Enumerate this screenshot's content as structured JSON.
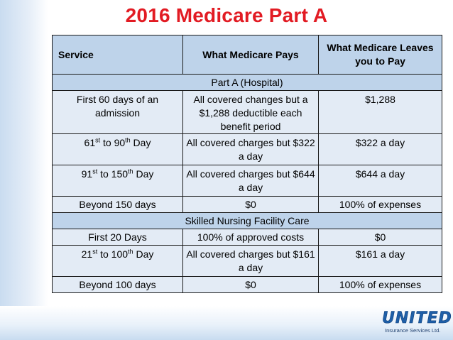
{
  "title": "2016 Medicare Part A",
  "table": {
    "headers": [
      "Service",
      "What Medicare Pays",
      "What Medicare Leaves you to Pay"
    ],
    "sections": [
      {
        "name": "Part A (Hospital)",
        "rows": [
          {
            "service": "First 60 days of an admission",
            "pays": "All covered changes but a $1,288 deductible each benefit period",
            "leaves": "$1,288"
          },
          {
            "service_parts": [
              "61",
              "st",
              " to 90",
              "th",
              " Day"
            ],
            "pays": "All covered charges but $322 a day",
            "leaves": "$322 a day"
          },
          {
            "service_parts": [
              "91",
              "st",
              " to 150",
              "th",
              " Day"
            ],
            "pays": "All covered charges but $644 a day",
            "leaves": "$644 a day"
          },
          {
            "service": "Beyond 150 days",
            "pays": "$0",
            "leaves": "100% of expenses"
          }
        ]
      },
      {
        "name": "Skilled Nursing Facility Care",
        "rows": [
          {
            "service": "First 20 Days",
            "pays": "100% of approved costs",
            "leaves": "$0"
          },
          {
            "service_parts": [
              "21",
              "st",
              " to 100",
              "th",
              " Day"
            ],
            "pays": "All covered charges but $161 a day",
            "leaves": "$161 a day"
          },
          {
            "service": "Beyond 100 days",
            "pays": "$0",
            "leaves": "100% of expenses"
          }
        ]
      }
    ]
  },
  "logo": {
    "word": "UNITED",
    "sub": "Insurance Services Ltd."
  },
  "colors": {
    "title": "#e21b23",
    "header_bg": "#bed3ea",
    "row_bg": "#e3ebf5",
    "logo": "#1f5fa8"
  }
}
